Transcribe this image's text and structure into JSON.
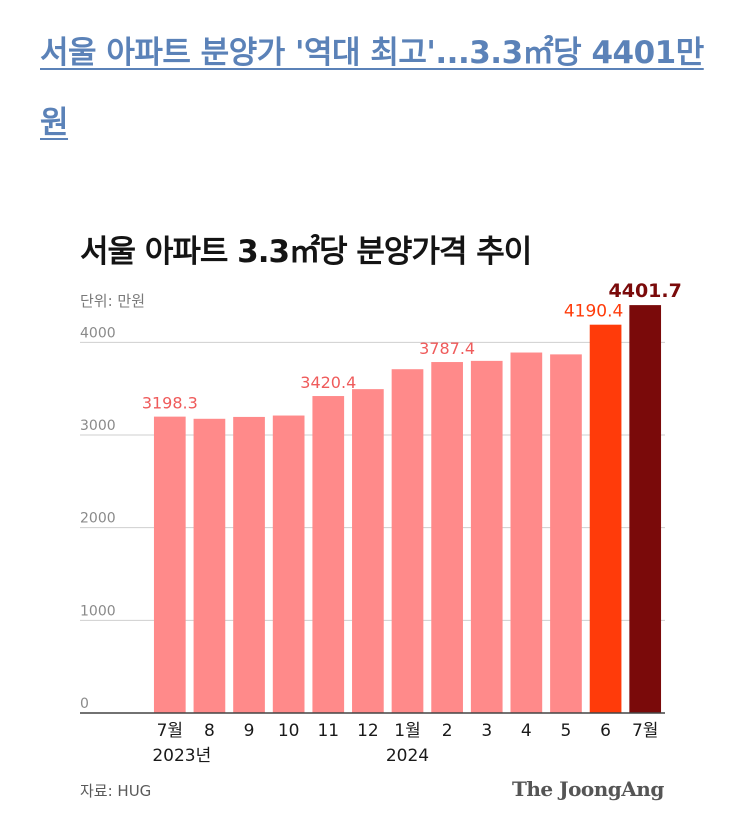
{
  "headline": "서울 아파트 분양가 '역대 최고'...3.3㎡당 4401만원",
  "chart": {
    "title": "서울 아파트 3.3㎡당 분양가격 추이",
    "unit": "단위: 만원",
    "source": "자료: HUG",
    "brand": "The JoongAng"
  },
  "colors": {
    "headline": "#5b82b8",
    "bar": "#ff8a8a",
    "bar_june": "#ff3b0a",
    "bar_july": "#7a0a0a",
    "label": "#ef5b5b",
    "gridline": "#cfcfcf"
  },
  "chart_data": {
    "type": "bar",
    "title": "서울 아파트 3.3㎡당 분양가격 추이",
    "ylabel": "단위: 만원",
    "ylim": [
      0,
      4500
    ],
    "yticks": [
      0,
      1000,
      2000,
      3000,
      4000
    ],
    "grid": true,
    "x_tick_labels": [
      "7월",
      "8",
      "9",
      "10",
      "11",
      "12",
      "1월",
      "2",
      "3",
      "4",
      "5",
      "6",
      "7월"
    ],
    "x_year_labels": [
      {
        "label": "2023년",
        "index": 0
      },
      {
        "label": "2024",
        "index": 6
      }
    ],
    "values": [
      3198.3,
      3175,
      3195,
      3210,
      3420.4,
      3495,
      3710,
      3787.4,
      3800,
      3890,
      3870,
      4190.4,
      4401.7
    ],
    "data_labels": [
      {
        "index": 0,
        "text": "3198.3"
      },
      {
        "index": 4,
        "text": "3420.4"
      },
      {
        "index": 7,
        "text": "3787.4"
      },
      {
        "index": 11,
        "text": "4190.4"
      },
      {
        "index": 12,
        "text": "4401.7"
      }
    ]
  }
}
